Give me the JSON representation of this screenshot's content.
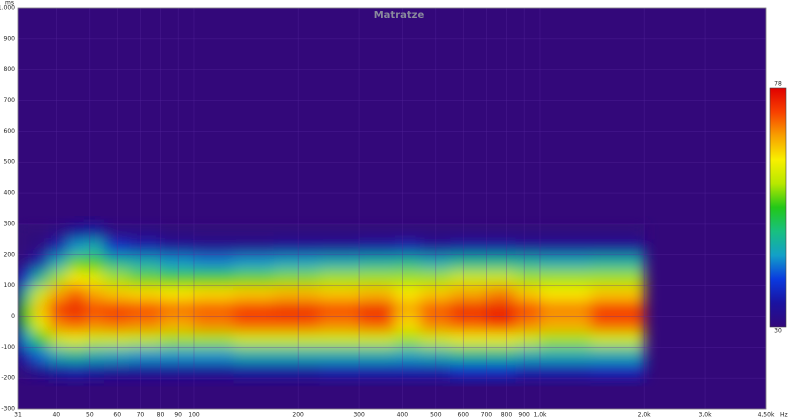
{
  "chart_data": {
    "type": "heatmap",
    "title": "Matratze",
    "ylabel": "ms",
    "xlabel": "Hz",
    "xscale": "log",
    "grid": true,
    "background": "#33087a",
    "grid_color": "#5a2aa0",
    "xlim": [
      31,
      4500
    ],
    "ylim": [
      -300,
      1000
    ],
    "xticks": [
      31,
      40,
      50,
      60,
      70,
      80,
      90,
      100,
      200,
      300,
      400,
      500,
      600,
      700,
      800,
      900,
      {
        "value": 1000,
        "label": "1,0k"
      },
      {
        "value": 2000,
        "label": "2,0k"
      },
      {
        "value": 3000,
        "label": "3,0k"
      },
      {
        "value": 4500,
        "label": "4,50k"
      }
    ],
    "yticks": [
      {
        "value": 1000,
        "label": "1.000"
      },
      900,
      800,
      700,
      600,
      500,
      400,
      300,
      200,
      100,
      0,
      -100,
      -200,
      -300
    ],
    "x_edges": [
      31,
      34,
      38,
      43,
      48,
      55,
      65,
      80,
      100,
      130,
      170,
      230,
      300,
      380,
      450,
      550,
      700,
      850,
      1000,
      1400,
      2000
    ],
    "y_edges": [
      300,
      250,
      200,
      150,
      100,
      50,
      0,
      -50,
      -100,
      -150,
      -200
    ],
    "z": [
      [
        30,
        30,
        31,
        34,
        35,
        31,
        31,
        30,
        30,
        30,
        30,
        30,
        30,
        30,
        30,
        30,
        30,
        30,
        30,
        30
      ],
      [
        30,
        31,
        36,
        44,
        46,
        38,
        36,
        34,
        33,
        33,
        34,
        34,
        35,
        36,
        34,
        35,
        35,
        34,
        34,
        34
      ],
      [
        31,
        36,
        46,
        56,
        55,
        48,
        46,
        44,
        43,
        44,
        45,
        46,
        47,
        48,
        46,
        48,
        48,
        47,
        46,
        47
      ],
      [
        38,
        48,
        58,
        64,
        62,
        58,
        56,
        55,
        55,
        56,
        57,
        58,
        58,
        58,
        58,
        60,
        60,
        58,
        58,
        58
      ],
      [
        48,
        60,
        68,
        72,
        68,
        66,
        65,
        64,
        65,
        66,
        67,
        66,
        67,
        64,
        66,
        68,
        70,
        66,
        64,
        66
      ],
      [
        55,
        66,
        74,
        76,
        73,
        74,
        73,
        71,
        72,
        74,
        75,
        73,
        75,
        68,
        72,
        75,
        76,
        73,
        70,
        74
      ],
      [
        52,
        62,
        70,
        72,
        70,
        71,
        70,
        68,
        70,
        72,
        72,
        70,
        72,
        65,
        70,
        72,
        74,
        70,
        68,
        72
      ],
      [
        44,
        54,
        60,
        62,
        60,
        60,
        59,
        58,
        58,
        60,
        60,
        60,
        60,
        58,
        60,
        62,
        62,
        60,
        58,
        60
      ],
      [
        36,
        42,
        46,
        48,
        46,
        45,
        44,
        44,
        44,
        46,
        46,
        46,
        46,
        45,
        46,
        48,
        48,
        46,
        46,
        46
      ],
      [
        31,
        33,
        35,
        36,
        35,
        34,
        34,
        34,
        34,
        35,
        35,
        36,
        36,
        36,
        36,
        38,
        38,
        36,
        36,
        37
      ]
    ],
    "zlim": [
      30,
      78
    ],
    "colorbar_ticks": [
      30,
      78
    ],
    "colorscale": [
      "#33087a",
      "#1a12a0",
      "#0a3adf",
      "#12a0c8",
      "#18c080",
      "#22c818",
      "#b8e800",
      "#f8f000",
      "#f8a000",
      "#f84000",
      "#e00000"
    ]
  }
}
